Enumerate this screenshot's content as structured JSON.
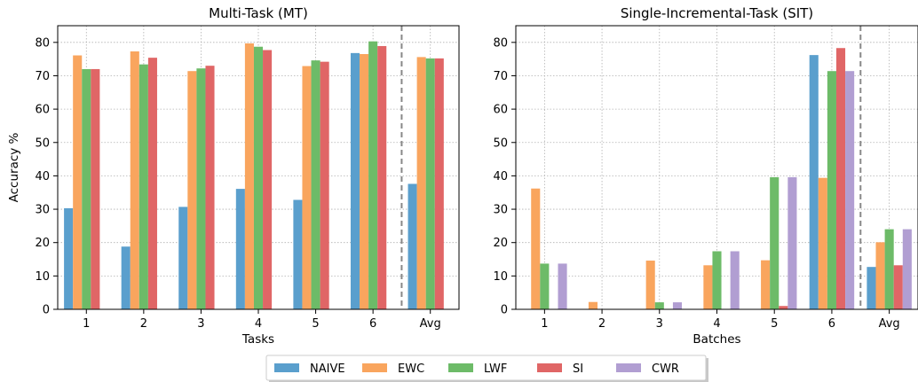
{
  "colors": {
    "series": [
      "#5a9fcd",
      "#f9a55e",
      "#6dbb68",
      "#e06666",
      "#b19ed2"
    ],
    "grid": "#b0b0b0",
    "divider": "#888888"
  },
  "legend": {
    "placement": "bottom-center",
    "entries": [
      "NAIVE",
      "EWC",
      "LWF",
      "SI",
      "CWR"
    ]
  },
  "chart_data": [
    {
      "type": "bar",
      "title": "Multi-Task (MT)",
      "xlabel": "Tasks",
      "ylabel": "Accuracy %",
      "categories": [
        "1",
        "2",
        "3",
        "4",
        "5",
        "6",
        "Avg"
      ],
      "ylim": [
        0,
        85
      ],
      "yticks": [
        0,
        10,
        20,
        30,
        40,
        50,
        60,
        70,
        80
      ],
      "grid": true,
      "divider_before": "Avg",
      "series": [
        {
          "name": "NAIVE",
          "values": [
            30.3,
            18.8,
            30.7,
            36.1,
            32.8,
            76.8,
            37.6
          ]
        },
        {
          "name": "EWC",
          "values": [
            76.1,
            77.3,
            71.4,
            79.7,
            72.9,
            76.5,
            75.6
          ]
        },
        {
          "name": "LWF",
          "values": [
            72.0,
            73.4,
            72.2,
            78.7,
            74.6,
            80.3,
            75.2
          ]
        },
        {
          "name": "SI",
          "values": [
            72.0,
            75.4,
            73.0,
            77.7,
            74.2,
            78.9,
            75.2
          ]
        }
      ]
    },
    {
      "type": "bar",
      "title": "Single-Incremental-Task (SIT)",
      "xlabel": "Batches",
      "ylabel": "",
      "categories": [
        "1",
        "2",
        "3",
        "4",
        "5",
        "6",
        "Avg"
      ],
      "ylim": [
        0,
        85
      ],
      "yticks": [
        0,
        10,
        20,
        30,
        40,
        50,
        60,
        70,
        80
      ],
      "grid": true,
      "divider_before": "Avg",
      "series": [
        {
          "name": "NAIVE",
          "values": [
            0,
            0,
            0,
            0,
            0,
            76.2,
            12.7
          ]
        },
        {
          "name": "EWC",
          "values": [
            36.2,
            2.2,
            14.6,
            13.2,
            14.7,
            39.4,
            20.1
          ]
        },
        {
          "name": "LWF",
          "values": [
            13.7,
            0,
            2.1,
            17.4,
            39.6,
            71.4,
            24.0
          ]
        },
        {
          "name": "SI",
          "values": [
            0,
            0,
            0,
            0,
            1.0,
            78.3,
            13.2
          ]
        },
        {
          "name": "CWR",
          "values": [
            13.7,
            0,
            2.1,
            17.4,
            39.6,
            71.4,
            24.0
          ]
        }
      ]
    }
  ]
}
